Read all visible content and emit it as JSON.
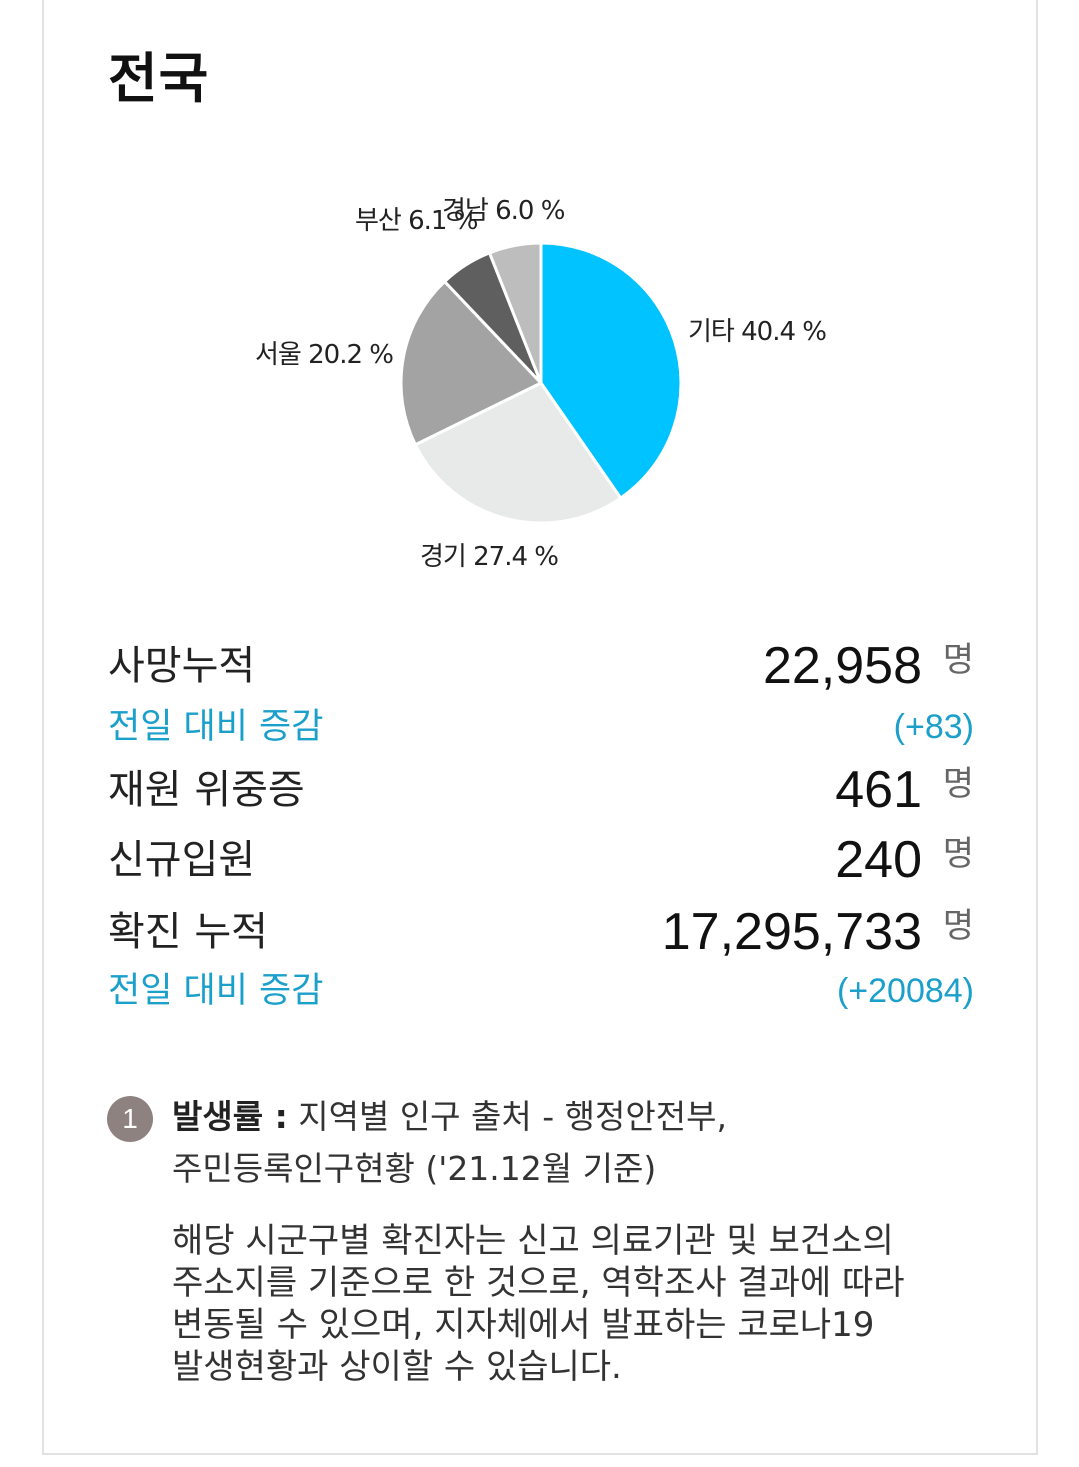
{
  "page_title": "전국",
  "chart_data": {
    "type": "pie",
    "title": "",
    "slices": [
      {
        "label": "기타",
        "value": 40.4,
        "display": "기타 40.4 %",
        "color": "#00c3ff"
      },
      {
        "label": "경기",
        "value": 27.4,
        "display": "경기 27.4 %",
        "color": "#e8e9e9"
      },
      {
        "label": "서울",
        "value": 20.2,
        "display": "서울 20.2 %",
        "color": "#a3a3a3"
      },
      {
        "label": "부산",
        "value": 6.1,
        "display": "부산 6.1 %",
        "color": "#5f5f5f"
      },
      {
        "label": "경남",
        "value": 6.0,
        "display": "경남 6.0 %",
        "color": "#bdbdbd"
      }
    ]
  },
  "stats": {
    "deaths": {
      "label": "사망누적",
      "value": "22,958",
      "unit": "명"
    },
    "deaths_diff": {
      "label": "전일 대비 증감",
      "value": "(+83)"
    },
    "critical": {
      "label": "재원 위중증",
      "value": "461",
      "unit": "명"
    },
    "admitted": {
      "label": "신규입원",
      "value": "240",
      "unit": "명"
    },
    "confirmed": {
      "label": "확진 누적",
      "value": "17,295,733",
      "unit": "명"
    },
    "confirmed_diff": {
      "label": "전일 대비 증감",
      "value": "(+20084)"
    }
  },
  "note": {
    "number": "1",
    "bold": "발생률 :",
    "line1": " 지역별 인구 출처 - 행정안전부,",
    "line2": "주민등록인구현황 ('21.12월 기준)",
    "desc": [
      "해당 시군구별 확진자는 신고 의료기관 및 보건소의",
      "주소지를 기준으로 한 것으로, 역학조사 결과에 따라",
      "변동될 수 있으며, 지자체에서 발표하는 코로나19",
      "발생현황과 상이할 수 있습니다."
    ]
  }
}
